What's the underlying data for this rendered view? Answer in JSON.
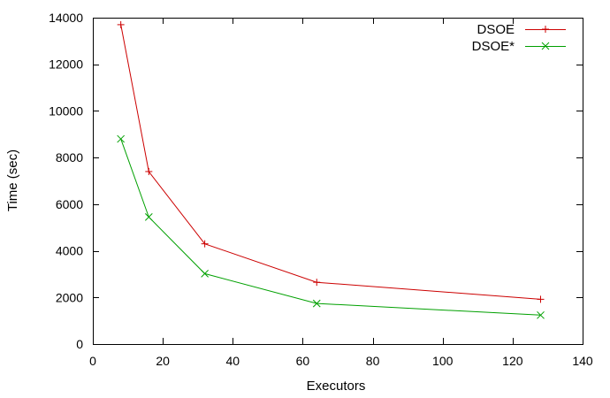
{
  "chart_data": {
    "type": "line",
    "title": "",
    "xlabel": "Executors",
    "ylabel": "Time (sec)",
    "xlim": [
      0,
      140
    ],
    "ylim": [
      0,
      14000
    ],
    "xticks": [
      0,
      20,
      40,
      60,
      80,
      100,
      120,
      140
    ],
    "yticks": [
      0,
      2000,
      4000,
      6000,
      8000,
      10000,
      12000,
      14000
    ],
    "grid": false,
    "legend_position": "top-right",
    "series": [
      {
        "name": "DSOE",
        "color": "#cc0000",
        "marker": "plus",
        "points": [
          {
            "x": 8,
            "y": 13700
          },
          {
            "x": 16,
            "y": 7400
          },
          {
            "x": 32,
            "y": 4300
          },
          {
            "x": 64,
            "y": 2650
          },
          {
            "x": 128,
            "y": 1920
          }
        ]
      },
      {
        "name": "DSOE*",
        "color": "#00a000",
        "marker": "cross",
        "points": [
          {
            "x": 8,
            "y": 8800
          },
          {
            "x": 16,
            "y": 5450
          },
          {
            "x": 32,
            "y": 3020
          },
          {
            "x": 64,
            "y": 1740
          },
          {
            "x": 128,
            "y": 1240
          }
        ]
      }
    ]
  }
}
